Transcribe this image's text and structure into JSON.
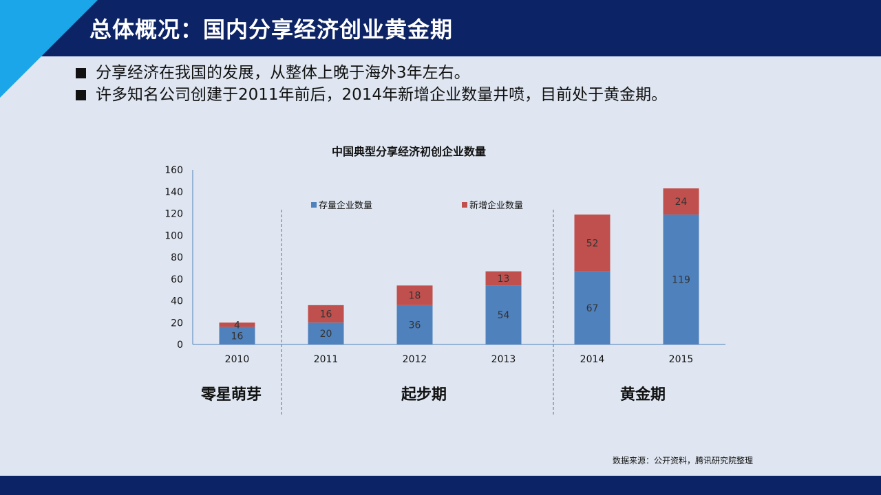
{
  "header": {
    "title": "总体概况：国内分享经济创业黄金期"
  },
  "bullets": [
    "分享经济在我国的发展，从整体上晚于海外3年左右。",
    "许多知名公司创建于2011年前后，2014年新增企业数量井喷，目前处于黄金期。"
  ],
  "phases": [
    "零星萌芽",
    "起步期",
    "黄金期"
  ],
  "source": "数据来源：公开资料，腾讯研究院整理",
  "colors": {
    "header": "#0c2366",
    "accent": "#1aa6e8",
    "existing": "#4f81bd",
    "new": "#c0504d",
    "background": "#dfe6f1"
  },
  "chart_data": {
    "type": "bar",
    "stacked": true,
    "title": "中国典型分享经济初创企业数量",
    "categories": [
      "2010",
      "2011",
      "2012",
      "2013",
      "2014",
      "2015"
    ],
    "series": [
      {
        "name": "存量企业数量",
        "values": [
          16,
          20,
          36,
          54,
          67,
          119
        ]
      },
      {
        "name": "新增企业数量",
        "values": [
          4,
          16,
          18,
          13,
          52,
          24
        ]
      }
    ],
    "y_ticks": [
      "0",
      "20",
      "40",
      "60",
      "80",
      "100",
      "120",
      "140",
      "160"
    ],
    "ylim": [
      0,
      160
    ],
    "xlabel": "",
    "ylabel": "",
    "grid": false,
    "legend": "top"
  }
}
